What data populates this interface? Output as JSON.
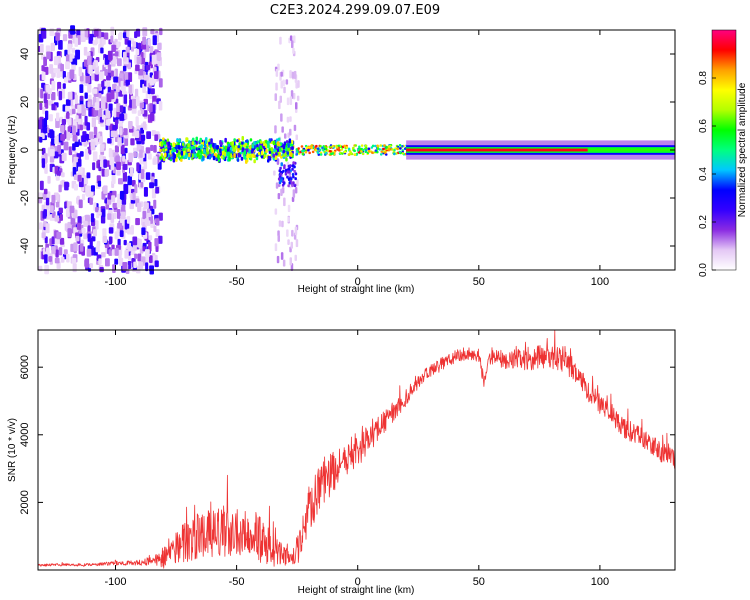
{
  "figure": {
    "title": "C2E3.2024.299.09.07.E09"
  },
  "chart_data": [
    {
      "type": "heatmap",
      "xlabel": "Height of straight line (km)",
      "ylabel": "Frequency (Hz)",
      "xlim": [
        -132,
        131
      ],
      "ylim": [
        -50,
        50
      ],
      "x_ticks": [
        -100,
        -50,
        0,
        50,
        100
      ],
      "y_ticks": [
        -40,
        -20,
        0,
        20,
        40
      ],
      "colorbar": {
        "label": "Normalized spectral amplitude",
        "range": [
          0,
          1
        ],
        "ticks": [
          0.0,
          0.2,
          0.4,
          0.6,
          0.8
        ],
        "colormap": [
          "#ffffff",
          "#e4c8f5",
          "#8a2be2",
          "#3300ff",
          "#0000ff",
          "#00c8ff",
          "#00ff80",
          "#00ff00",
          "#b4ff00",
          "#ffff00",
          "#ffa000",
          "#ff0000",
          "#ff0080"
        ]
      },
      "regions": [
        {
          "x": [
            -132,
            -82
          ],
          "freq": [
            -50,
            50
          ],
          "amplitude": [
            0.05,
            0.3
          ]
        },
        {
          "x": [
            -82,
            -27
          ],
          "freq": [
            -5,
            5
          ],
          "amplitude": [
            0.2,
            0.8
          ]
        },
        {
          "x": [
            -33,
            -26
          ],
          "freq": [
            -15,
            -5
          ],
          "amplitude": [
            0.1,
            0.4
          ]
        },
        {
          "x": [
            -26,
            20
          ],
          "freq": [
            -2,
            2
          ],
          "amplitude": [
            0.3,
            0.95
          ]
        },
        {
          "x": [
            20,
            131
          ],
          "freq": [
            -1,
            1
          ],
          "amplitude": [
            0.9,
            1.0
          ]
        }
      ]
    },
    {
      "type": "line",
      "xlabel": "Height of straight line (km)",
      "ylabel": "SNR (10 * v/v)",
      "xlim": [
        -132,
        131
      ],
      "ylim": [
        0,
        7100
      ],
      "x_ticks": [
        -100,
        -50,
        0,
        50,
        100
      ],
      "y_ticks": [
        2000,
        4000,
        6000
      ],
      "series": [
        {
          "color": "#ee3333",
          "envelope_x": [
            -132,
            -110,
            -100,
            -90,
            -85,
            -80,
            -75,
            -70,
            -60,
            -50,
            -45,
            -40,
            -35,
            -30,
            -26,
            -24,
            -20,
            -15,
            -10,
            -5,
            0,
            5,
            10,
            15,
            20,
            25,
            30,
            35,
            40,
            45,
            50,
            52,
            55,
            60,
            65,
            70,
            75,
            80,
            85,
            88,
            90,
            95,
            100,
            105,
            110,
            115,
            120,
            125,
            131
          ],
          "envelope_y": [
            150,
            150,
            200,
            220,
            260,
            400,
            700,
            900,
            1050,
            1250,
            1100,
            900,
            600,
            400,
            250,
            800,
            1800,
            2500,
            2900,
            3200,
            3500,
            3900,
            4300,
            4700,
            5100,
            5600,
            5900,
            6100,
            6300,
            6400,
            6350,
            5600,
            6300,
            6200,
            6250,
            6200,
            6300,
            6300,
            6200,
            6000,
            5800,
            5300,
            4900,
            4600,
            4200,
            4000,
            3800,
            3500,
            3300
          ],
          "noise_amplitude": [
            40,
            40,
            60,
            80,
            150,
            350,
            500,
            650,
            750,
            800,
            800,
            700,
            500,
            300,
            150,
            600,
            700,
            700,
            600,
            500,
            450,
            400,
            350,
            300,
            250,
            220,
            200,
            200,
            200,
            200,
            200,
            200,
            250,
            250,
            300,
            300,
            350,
            350,
            350,
            350,
            300,
            300,
            300,
            300,
            300,
            300,
            300,
            300,
            300
          ]
        }
      ]
    }
  ]
}
